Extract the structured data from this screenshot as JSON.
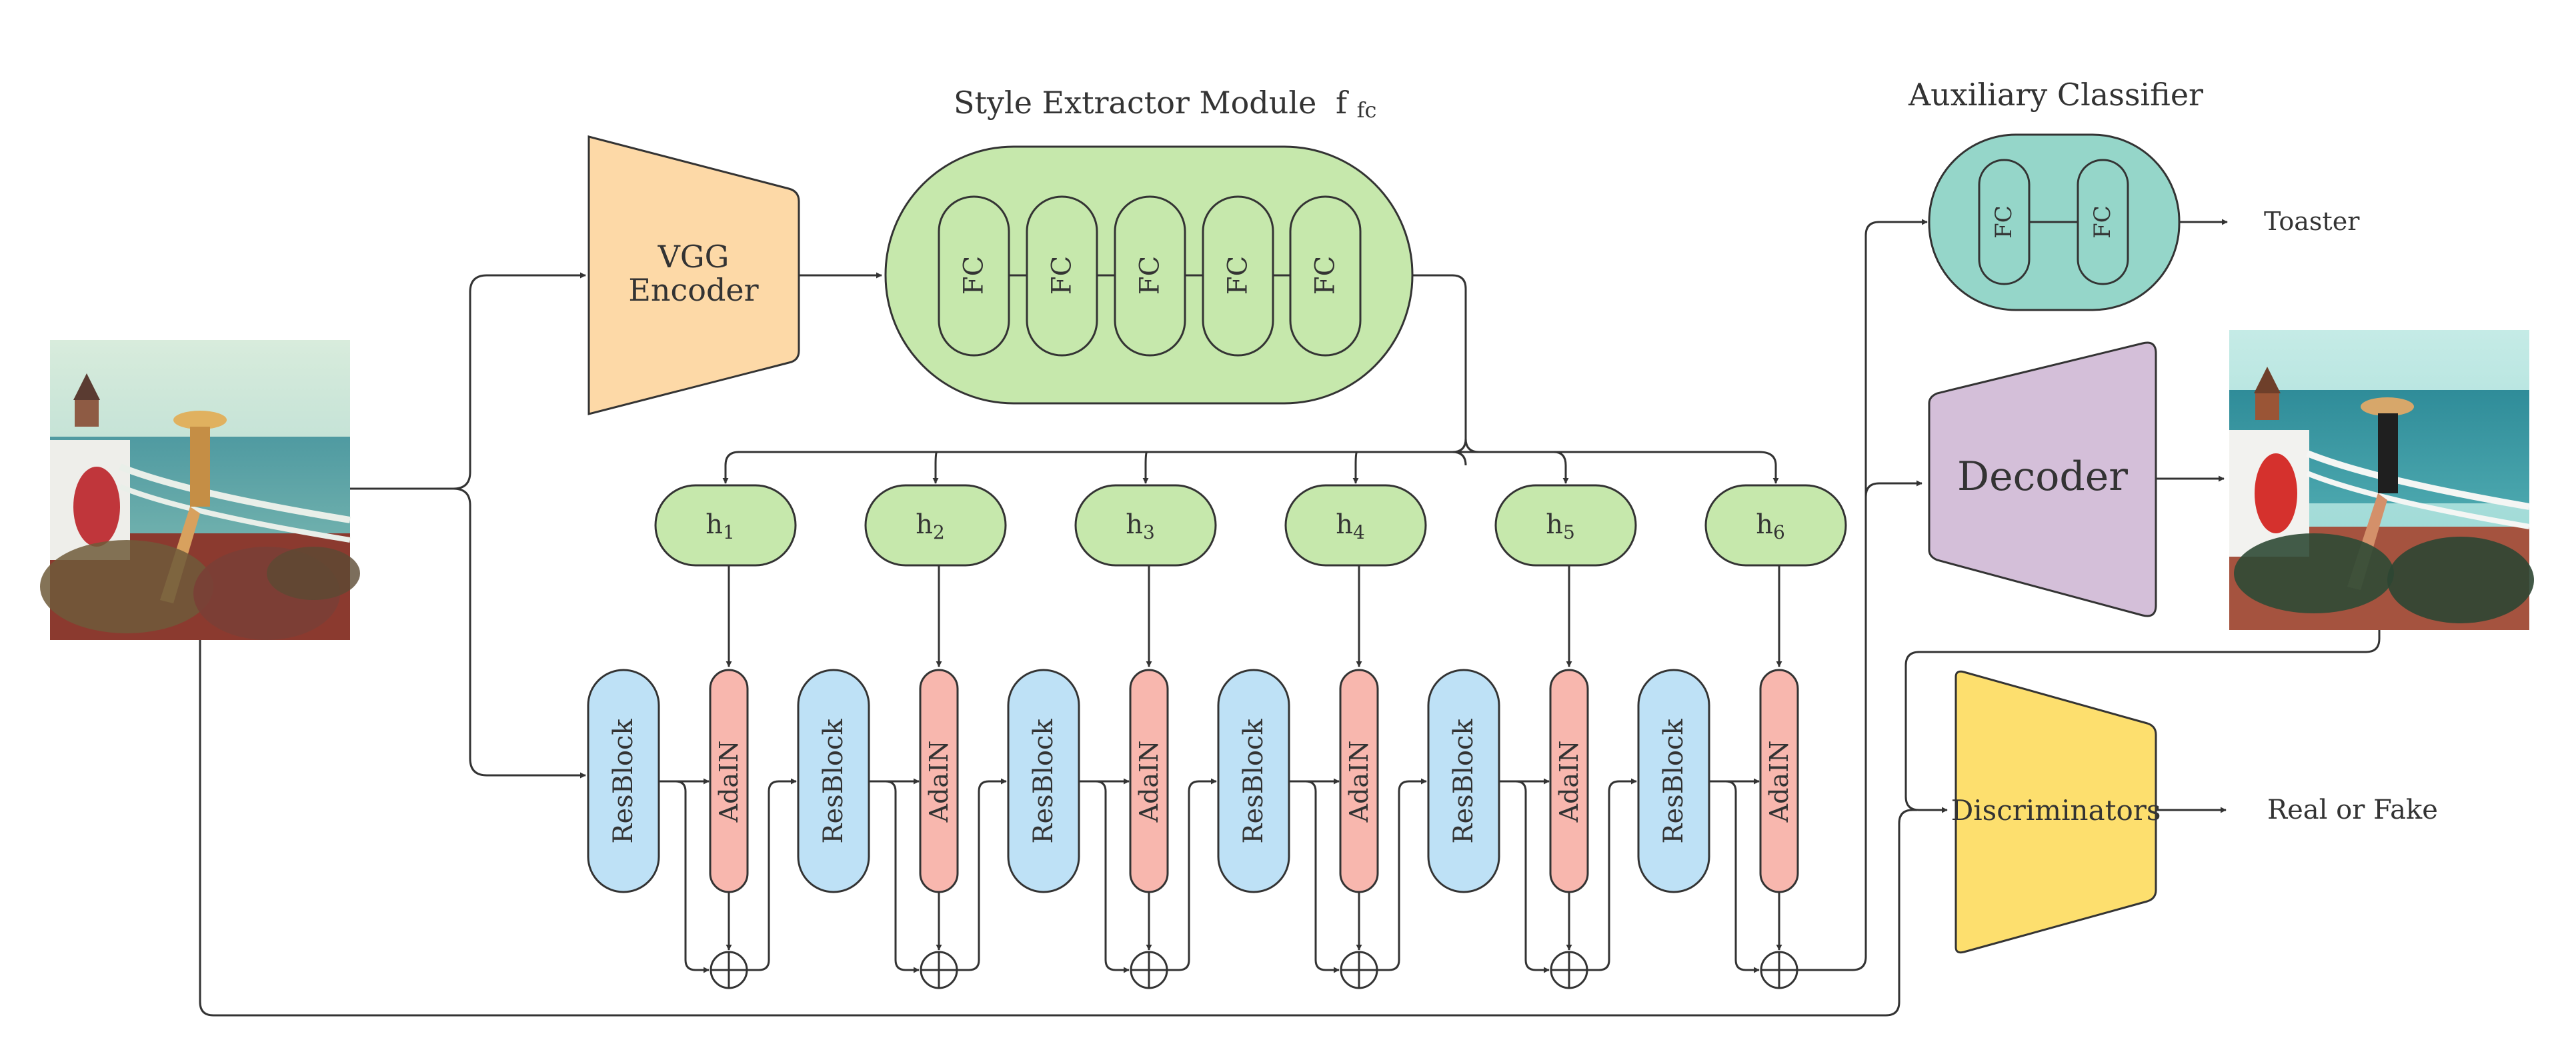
{
  "style_module": {
    "title": "Style Extractor Module",
    "symbol_base": "f",
    "symbol_sub": "fc",
    "fc_labels": [
      "FC",
      "FC",
      "FC",
      "FC",
      "FC"
    ],
    "color": "#c6e8ac"
  },
  "vgg_encoder": {
    "line1": "VGG",
    "line2": "Encoder",
    "color": "#fdd9a7"
  },
  "aux_classifier": {
    "title": "Auxiliary Classifier",
    "fc_labels": [
      "FC",
      "FC"
    ],
    "output": "Toaster",
    "color": "#95d6c9"
  },
  "decoder": {
    "label": "Decoder",
    "color": "#d4bfd9"
  },
  "discriminators": {
    "label": "Discriminators",
    "output": "Real or Fake",
    "color": "#fddf6e"
  },
  "h_nodes": [
    {
      "base": "h",
      "sub": "1"
    },
    {
      "base": "h",
      "sub": "2"
    },
    {
      "base": "h",
      "sub": "3"
    },
    {
      "base": "h",
      "sub": "4"
    },
    {
      "base": "h",
      "sub": "5"
    },
    {
      "base": "h",
      "sub": "6"
    }
  ],
  "resblock_label": "ResBlock",
  "adain_label": "AdaIN",
  "colors": {
    "resblock": "#bee1f6",
    "adain": "#f8b7ae",
    "h": "#c6e8ac",
    "line": "#333333"
  }
}
